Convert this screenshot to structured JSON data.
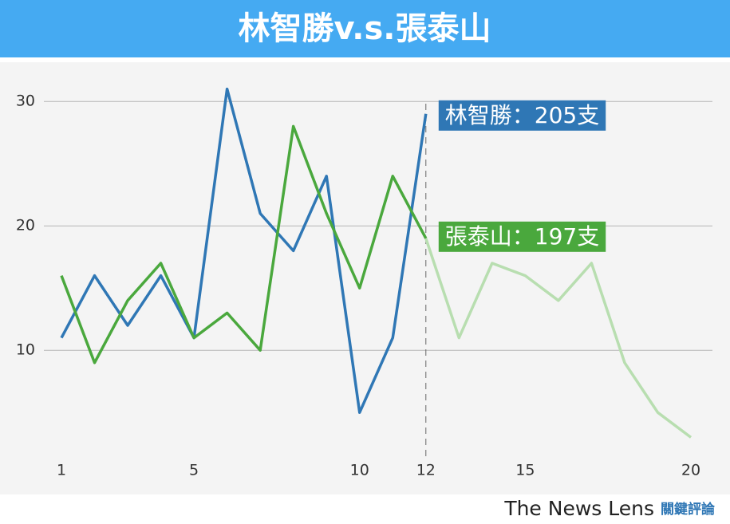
{
  "chart_data": {
    "type": "line",
    "title": "林智勝v.s.張泰山",
    "x": [
      1,
      2,
      3,
      4,
      5,
      6,
      7,
      8,
      9,
      10,
      11,
      12,
      13,
      14,
      15,
      16,
      17,
      18,
      19,
      20
    ],
    "series": [
      {
        "name": "林智勝",
        "label": "林智勝：205支",
        "color": "#2f77b5",
        "values": [
          11,
          16,
          12,
          16,
          11,
          31,
          21,
          18,
          24,
          5,
          11,
          29,
          null,
          null,
          null,
          null,
          null,
          null,
          null,
          null
        ]
      },
      {
        "name": "張泰山",
        "label": "張泰山：197支",
        "color": "#4aa83d",
        "faded_color": "#b8deb0",
        "values": [
          16,
          9,
          14,
          17,
          11,
          13,
          10,
          28,
          21,
          15,
          24,
          19,
          11,
          17,
          16,
          14,
          17,
          9,
          5,
          3
        ]
      }
    ],
    "vline": 12,
    "xlim": [
      1,
      20
    ],
    "xticks": [
      1,
      5,
      10,
      12,
      15,
      20
    ],
    "ylim": [
      2,
      32
    ],
    "yticks": [
      10,
      20,
      30
    ],
    "grid": true,
    "credit": "The News Lens",
    "credit_sub": "關鍵評論"
  }
}
